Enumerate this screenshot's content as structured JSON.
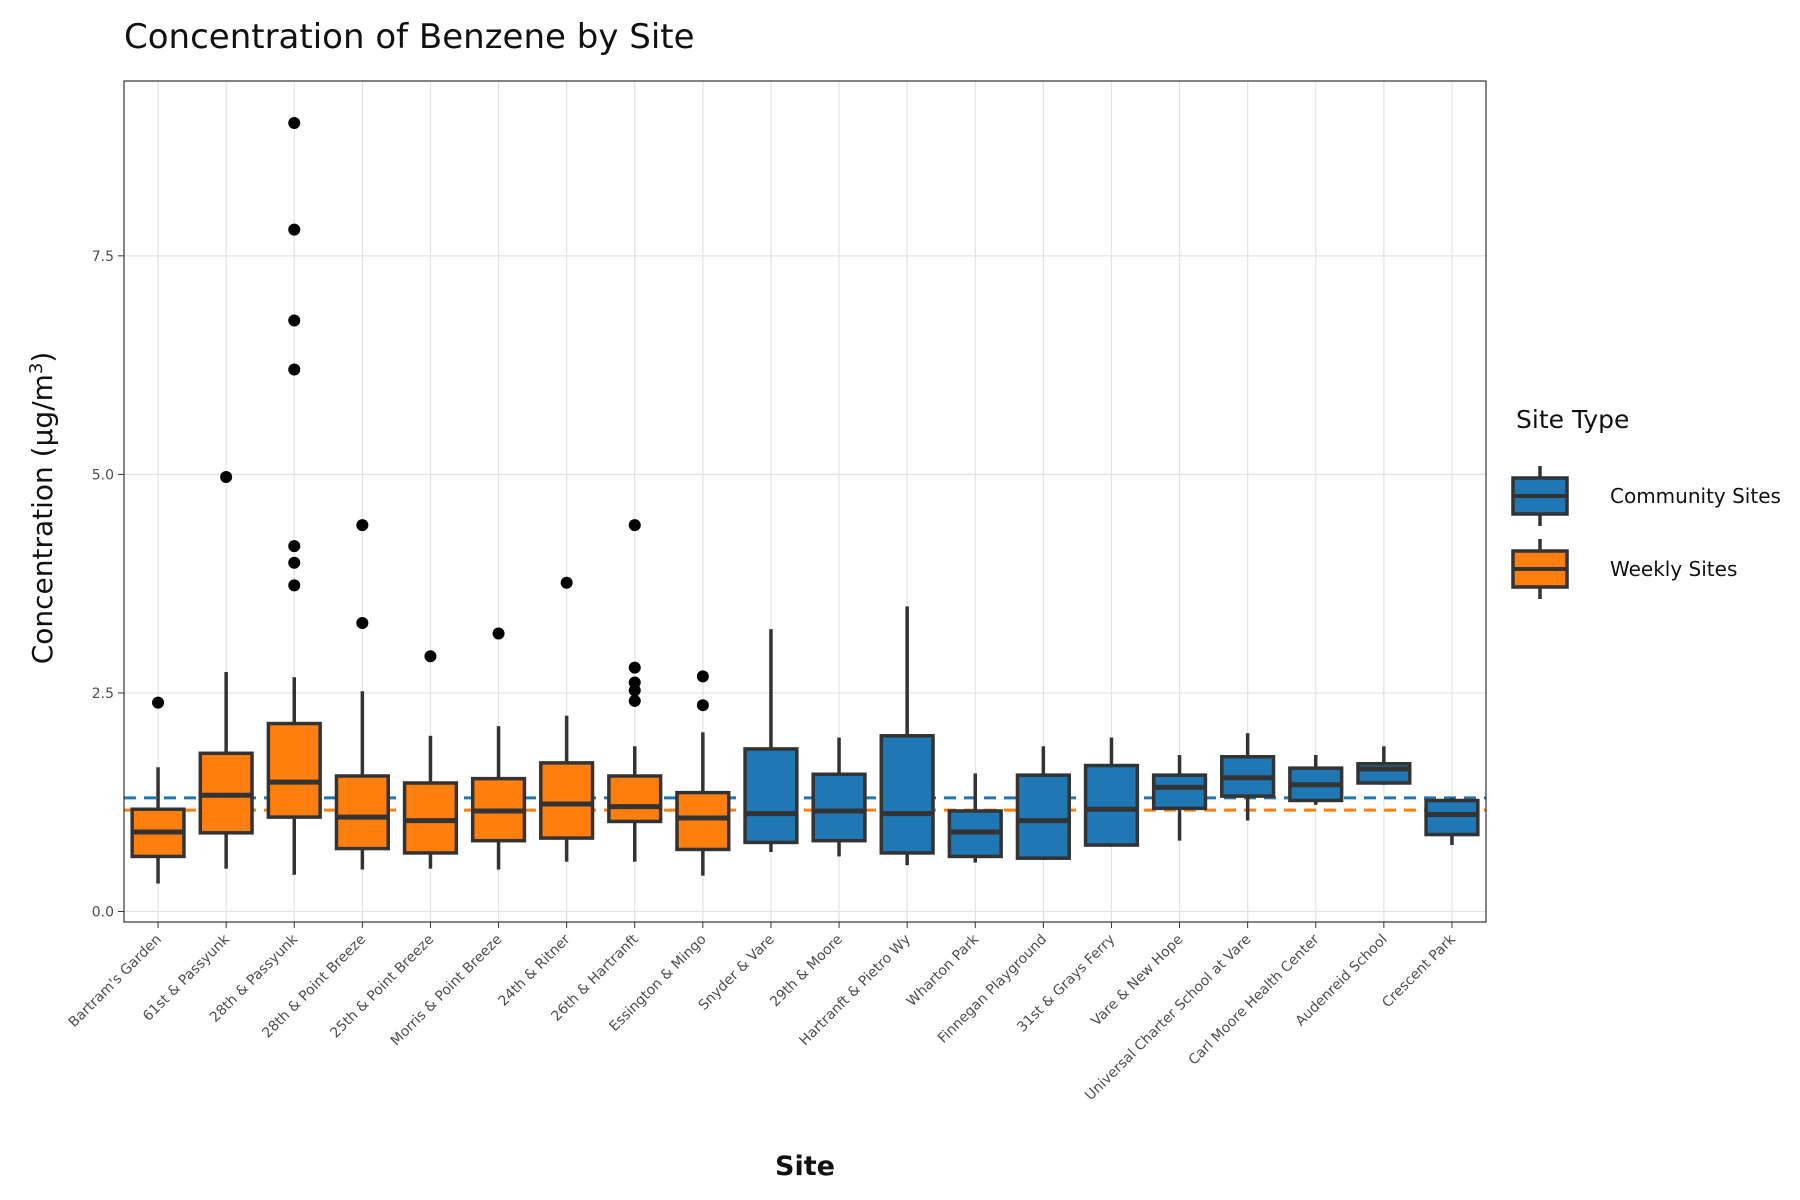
{
  "chart_data": {
    "type": "boxplot",
    "title": "Concentration of Benzene by Site",
    "xlabel": "Site",
    "ylabel_main": "Concentration (μg/m",
    "ylabel_sup": "3",
    "ylabel_close": ")",
    "ylim": [
      -0.12,
      9.5
    ],
    "yticks": [
      0.0,
      2.5,
      5.0,
      7.5
    ],
    "ytick_labels": [
      "0.0",
      "2.5",
      "5.0",
      "7.5"
    ],
    "grid": true,
    "legend": {
      "title": "Site Type",
      "position": "right",
      "entries": [
        {
          "label": "Community Sites",
          "color": "#1f77b4"
        },
        {
          "label": "Weekly Sites",
          "color": "#ff7f0e"
        }
      ]
    },
    "reference_lines": [
      {
        "group": "Community Sites",
        "value": 1.3,
        "color": "#1f77b4",
        "style": "dashed"
      },
      {
        "group": "Weekly Sites",
        "value": 1.16,
        "color": "#ff7f0e",
        "style": "dashed"
      }
    ],
    "series": [
      {
        "site": "Bartram's Garden",
        "group": "Weekly Sites",
        "whisker_low": 0.32,
        "q1": 0.63,
        "median": 0.91,
        "q3": 1.17,
        "whisker_high": 1.65,
        "outliers": [
          2.39
        ]
      },
      {
        "site": "61st & Passyunk",
        "group": "Weekly Sites",
        "whisker_low": 0.49,
        "q1": 0.9,
        "median": 1.33,
        "q3": 1.81,
        "whisker_high": 2.74,
        "outliers": [
          4.97
        ]
      },
      {
        "site": "28th & Passyunk",
        "group": "Weekly Sites",
        "whisker_low": 0.42,
        "q1": 1.08,
        "median": 1.48,
        "q3": 2.15,
        "whisker_high": 2.68,
        "outliers": [
          3.73,
          3.99,
          4.18,
          6.2,
          6.76,
          7.8,
          9.02
        ]
      },
      {
        "site": "28th & Point Breeze",
        "group": "Weekly Sites",
        "whisker_low": 0.48,
        "q1": 0.72,
        "median": 1.08,
        "q3": 1.55,
        "whisker_high": 2.52,
        "outliers": [
          3.3,
          4.42
        ]
      },
      {
        "site": "25th & Point Breeze",
        "group": "Weekly Sites",
        "whisker_low": 0.49,
        "q1": 0.67,
        "median": 1.04,
        "q3": 1.47,
        "whisker_high": 2.01,
        "outliers": [
          2.92
        ]
      },
      {
        "site": "Morris & Point Breeze",
        "group": "Weekly Sites",
        "whisker_low": 0.48,
        "q1": 0.81,
        "median": 1.15,
        "q3": 1.52,
        "whisker_high": 2.12,
        "outliers": [
          3.18
        ]
      },
      {
        "site": "24th & Ritner",
        "group": "Weekly Sites",
        "whisker_low": 0.57,
        "q1": 0.84,
        "median": 1.23,
        "q3": 1.7,
        "whisker_high": 2.24,
        "outliers": [
          3.76
        ]
      },
      {
        "site": "26th & Hartranft",
        "group": "Weekly Sites",
        "whisker_low": 0.57,
        "q1": 1.03,
        "median": 1.2,
        "q3": 1.55,
        "whisker_high": 1.89,
        "outliers": [
          2.41,
          2.53,
          2.62,
          2.79,
          4.42
        ]
      },
      {
        "site": "Essington & Mingo",
        "group": "Weekly Sites",
        "whisker_low": 0.41,
        "q1": 0.71,
        "median": 1.07,
        "q3": 1.36,
        "whisker_high": 2.05,
        "outliers": [
          2.36,
          2.69
        ]
      },
      {
        "site": "Snyder & Vare",
        "group": "Community Sites",
        "whisker_low": 0.68,
        "q1": 0.79,
        "median": 1.12,
        "q3": 1.86,
        "whisker_high": 3.23,
        "outliers": []
      },
      {
        "site": "29th & Moore",
        "group": "Community Sites",
        "whisker_low": 0.63,
        "q1": 0.81,
        "median": 1.15,
        "q3": 1.57,
        "whisker_high": 1.99,
        "outliers": []
      },
      {
        "site": "Hartranft & Pietro Wy",
        "group": "Community Sites",
        "whisker_low": 0.53,
        "q1": 0.67,
        "median": 1.12,
        "q3": 2.01,
        "whisker_high": 3.49,
        "outliers": []
      },
      {
        "site": "Wharton Park",
        "group": "Community Sites",
        "whisker_low": 0.56,
        "q1": 0.63,
        "median": 0.91,
        "q3": 1.15,
        "whisker_high": 1.58,
        "outliers": []
      },
      {
        "site": "Finnegan Playground",
        "group": "Community Sites",
        "whisker_low": 0.59,
        "q1": 0.61,
        "median": 1.04,
        "q3": 1.56,
        "whisker_high": 1.89,
        "outliers": []
      },
      {
        "site": "31st & Grays Ferry",
        "group": "Community Sites",
        "whisker_low": 0.75,
        "q1": 0.76,
        "median": 1.17,
        "q3": 1.67,
        "whisker_high": 1.99,
        "outliers": []
      },
      {
        "site": "Vare & New Hope",
        "group": "Community Sites",
        "whisker_low": 0.81,
        "q1": 1.18,
        "median": 1.42,
        "q3": 1.56,
        "whisker_high": 1.79,
        "outliers": []
      },
      {
        "site": "Universal Charter School at Vare",
        "group": "Community Sites",
        "whisker_low": 1.04,
        "q1": 1.32,
        "median": 1.53,
        "q3": 1.77,
        "whisker_high": 2.04,
        "outliers": []
      },
      {
        "site": "Carl Moore Health Center",
        "group": "Community Sites",
        "whisker_low": 1.22,
        "q1": 1.27,
        "median": 1.45,
        "q3": 1.64,
        "whisker_high": 1.79,
        "outliers": []
      },
      {
        "site": "Audenreid School",
        "group": "Community Sites",
        "whisker_low": 1.45,
        "q1": 1.47,
        "median": 1.63,
        "q3": 1.69,
        "whisker_high": 1.89,
        "outliers": []
      },
      {
        "site": "Crescent Park",
        "group": "Community Sites",
        "whisker_low": 0.76,
        "q1": 0.88,
        "median": 1.11,
        "q3": 1.27,
        "whisker_high": 1.3,
        "outliers": []
      }
    ]
  }
}
